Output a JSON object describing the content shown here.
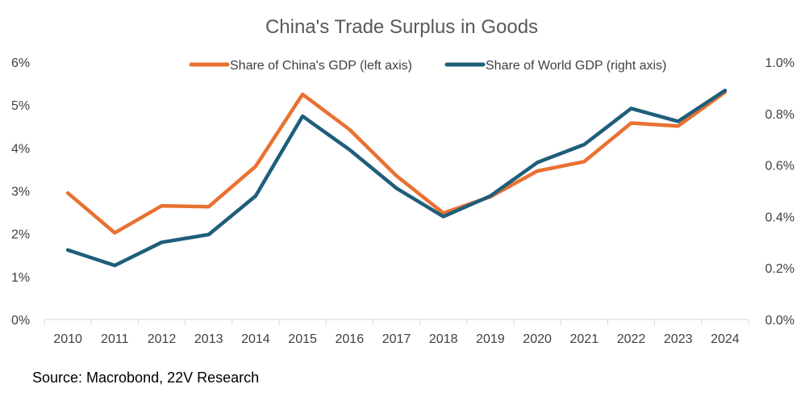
{
  "chart_data": {
    "type": "line",
    "title": "China's Trade Surplus in Goods",
    "source": "Source: Macrobond, 22V Research",
    "categories": [
      "2010",
      "2011",
      "2012",
      "2013",
      "2014",
      "2015",
      "2016",
      "2017",
      "2018",
      "2019",
      "2020",
      "2021",
      "2022",
      "2023",
      "2024"
    ],
    "left_axis": {
      "min": 0,
      "max": 6,
      "ticks": [
        "0%",
        "1%",
        "2%",
        "3%",
        "4%",
        "5%",
        "6%"
      ]
    },
    "right_axis": {
      "min": 0,
      "max": 1.0,
      "ticks": [
        "0.0%",
        "0.2%",
        "0.4%",
        "0.6%",
        "0.8%",
        "1.0%"
      ]
    },
    "series": [
      {
        "name": "Share of China's GDP (left axis)",
        "axis": "left",
        "color": "#E97132",
        "values": [
          2.95,
          2.02,
          2.65,
          2.63,
          3.57,
          5.25,
          4.43,
          3.35,
          2.48,
          2.86,
          3.46,
          3.68,
          4.58,
          4.51,
          5.3
        ]
      },
      {
        "name": "Share of World GDP (right axis)",
        "axis": "right",
        "color": "#1F5E7A",
        "values": [
          0.27,
          0.21,
          0.3,
          0.33,
          0.48,
          0.79,
          0.66,
          0.51,
          0.4,
          0.48,
          0.61,
          0.68,
          0.82,
          0.77,
          0.89
        ]
      }
    ],
    "legend_position": "top",
    "grid": false
  }
}
